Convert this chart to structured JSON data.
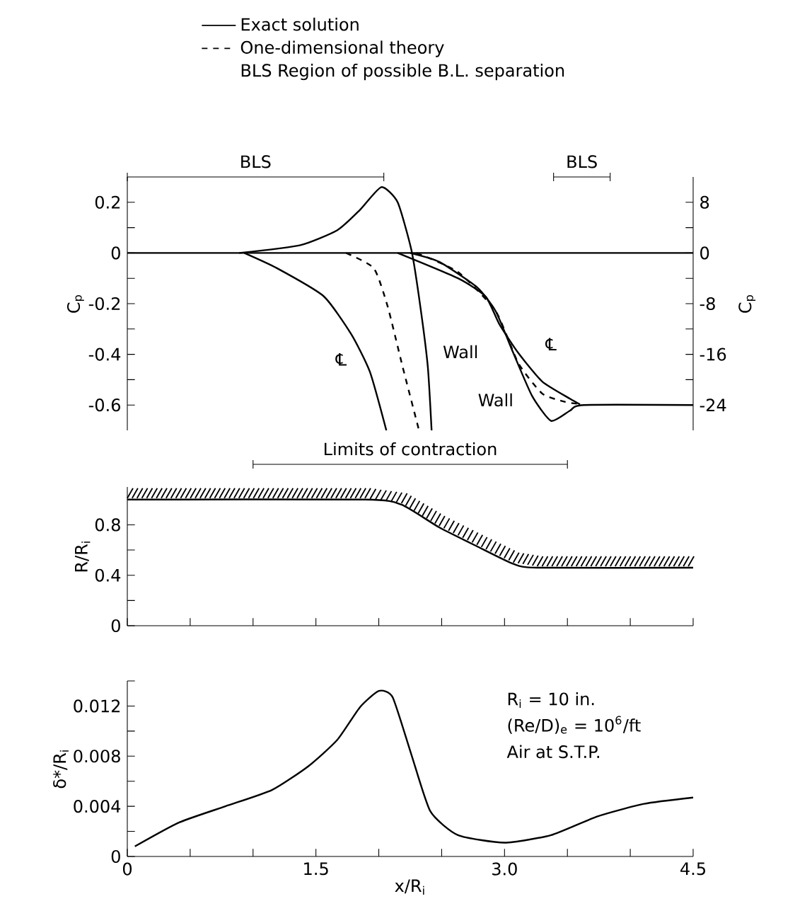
{
  "chart_data": [
    {
      "type": "line",
      "ylabel": "C$_{p}$",
      "y2label": "C$_{p}$",
      "xlim": [
        0,
        4.5
      ],
      "ylim": [
        -0.7,
        0.3
      ],
      "yticks": [
        0.2,
        {
          "value": 0.1,
          "label": null
        },
        0,
        {
          "value": -0.1,
          "label": null
        },
        -0.2,
        {
          "value": -0.3,
          "label": null
        },
        -0.4,
        {
          "value": -0.5,
          "label": null
        },
        -0.6
      ],
      "y2lim": [
        -28,
        12
      ],
      "y2ticks": [
        8,
        {
          "value": 4,
          "label": null
        },
        0,
        {
          "value": -4,
          "label": null
        },
        -8,
        {
          "value": -12,
          "label": null
        },
        -16,
        {
          "value": -20,
          "label": null
        },
        -24
      ],
      "tick_labels": "y",
      "legend": "top",
      "series": [
        {
          "name": "Exact solution",
          "color": "#000000",
          "line_style": "solid",
          "x": [
            0.89,
            1.37,
            1.67,
            1.85,
            2.02,
            2.15,
            2.26,
            2.33,
            2.39,
            2.42
          ],
          "values": [
            0,
            0.03,
            0.09,
            0.17,
            0.26,
            0.2,
            0.01,
            -0.21,
            -0.45,
            -0.7
          ]
        },
        {
          "color": "#000000",
          "line_style": "solid",
          "x": [
            0.93,
            1.19,
            1.56,
            1.78,
            1.93,
            2.06
          ],
          "values": [
            0,
            -0.06,
            -0.17,
            -0.32,
            -0.47,
            -0.7
          ]
        },
        {
          "name": "One-dimensional theory",
          "color": "#000000",
          "line_style": "dashed",
          "x": [
            1.74,
            1.96,
            2.07,
            2.19,
            2.32
          ],
          "values": [
            0,
            -0.06,
            -0.21,
            -0.45,
            -0.7
          ]
        },
        {
          "color": "#000000",
          "line_style": "solid",
          "axis": "y2",
          "x": [
            2.15,
            2.63,
            2.85,
            2.96,
            3.11,
            3.3,
            3.52,
            3.6
          ],
          "values": [
            0,
            -4,
            -6.9,
            -11.3,
            -15.8,
            -20.3,
            -23,
            -23.9
          ]
        },
        {
          "color": "#000000",
          "line_style": "solid",
          "axis": "y2",
          "x": [
            2.25,
            2.48,
            2.78,
            2.93,
            3.07,
            3.22,
            3.37,
            3.52,
            3.63,
            4.5
          ],
          "values": [
            0,
            -1.4,
            -5.4,
            -9.2,
            -15.8,
            -22.6,
            -26.5,
            -24.9,
            -24,
            -24
          ]
        },
        {
          "color": "#000000",
          "line_style": "dashed",
          "axis": "y2",
          "x": [
            2.3,
            2.63,
            2.93,
            3.11,
            3.3,
            3.48,
            3.58
          ],
          "values": [
            0,
            -3,
            -9.2,
            -17.4,
            -22.2,
            -23.5,
            -23.8
          ]
        }
      ],
      "ref_lines": [
        {
          "axis": "y",
          "value": 0
        }
      ],
      "annotations": [
        "BLS Region of possible B.L. separation",
        "℄",
        "Wall",
        "℄",
        "Wall",
        "BLS",
        "BLS"
      ]
    },
    {
      "type": "line",
      "ylabel": "R/R$_{i}$",
      "xlim": [
        0,
        4.5
      ],
      "ylim": [
        0,
        1.1
      ],
      "xticks": [
        {
          "value": 0,
          "label": null
        },
        {
          "value": 0.5,
          "label": null
        },
        {
          "value": 1,
          "label": null
        },
        {
          "value": 1.5,
          "label": null
        },
        {
          "value": 2,
          "label": null
        },
        {
          "value": 2.5,
          "label": null
        },
        {
          "value": 3,
          "label": null
        },
        {
          "value": 3.5,
          "label": null
        },
        {
          "value": 4,
          "label": null
        },
        {
          "value": 4.5,
          "label": null
        }
      ],
      "yticks": [
        0,
        {
          "value": 0.2,
          "label": null
        },
        0.4,
        {
          "value": 0.6,
          "label": null
        },
        0.8
      ],
      "tick_labels": "y",
      "series": [
        {
          "color": "#000000",
          "line_style": "solid",
          "x": [
            0,
            1.89,
            2.18,
            2.48,
            2.78,
            3.07,
            3.26,
            4.5
          ],
          "values": [
            1.0,
            1.0,
            0.96,
            0.78,
            0.63,
            0.49,
            0.46,
            0.46
          ]
        }
      ],
      "annotations": [
        "Limits of contraction"
      ]
    },
    {
      "type": "line",
      "xlabel": "x/R$_{i}$",
      "ylabel": "δ*/R$_{i}$",
      "xlim": [
        0,
        4.5
      ],
      "ylim": [
        0,
        0.014
      ],
      "xticks": [
        0,
        {
          "value": 0.5,
          "label": null
        },
        {
          "value": 1,
          "label": null
        },
        1.5,
        {
          "value": 2,
          "label": null
        },
        {
          "value": 2.5,
          "label": null
        },
        {
          "value": 3,
          "label": "3.0"
        },
        {
          "value": 3.5,
          "label": null
        },
        {
          "value": 4,
          "label": null
        },
        4.5
      ],
      "yticks": [
        0,
        {
          "value": 0.002,
          "label": null
        },
        0.004,
        {
          "value": 0.006,
          "label": null
        },
        0.008,
        {
          "value": 0.01,
          "label": null
        },
        0.012,
        {
          "value": 0.014,
          "label": null
        }
      ],
      "series": [
        {
          "color": "#000000",
          "line_style": "solid",
          "x": [
            0.06,
            0.41,
            0.78,
            1.15,
            1.44,
            1.67,
            1.85,
            2.0,
            2.11,
            2.26,
            2.41,
            2.63,
            3.0,
            3.37,
            3.74,
            4.11,
            4.5
          ],
          "values": [
            0.0008,
            0.0027,
            0.004,
            0.0053,
            0.0072,
            0.0093,
            0.0119,
            0.0132,
            0.0127,
            0.0081,
            0.0036,
            0.0017,
            0.0011,
            0.0017,
            0.0032,
            0.0042,
            0.0047
          ]
        }
      ],
      "annotations": [
        "R$_{i}$ = 10 in.",
        "(Re/D)$_{e}$ = 10$^{6}$/ft",
        "Air at S.T.P."
      ]
    }
  ]
}
